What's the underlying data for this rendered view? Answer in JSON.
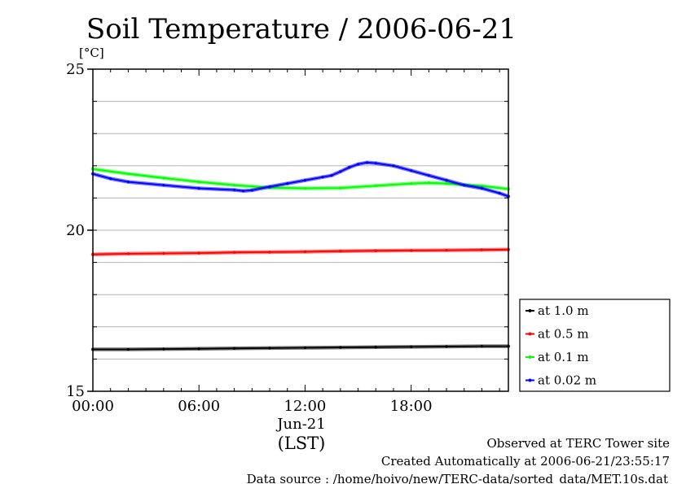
{
  "chart_data": {
    "type": "line",
    "title": "Soil Temperature / 2006-06-21",
    "unit_label": "[°C]",
    "ylim": [
      15,
      25
    ],
    "y_ticks": [
      15,
      20,
      25
    ],
    "y_tick_labels": [
      "15",
      "20",
      "25"
    ],
    "y_minor_step": 1,
    "xlim_hours": [
      0,
      23.5
    ],
    "x_ticks": [
      0,
      6,
      12,
      18
    ],
    "x_tick_labels": [
      "00:00",
      "06:00",
      "12:00",
      "18:00"
    ],
    "date_label": "Jun-21",
    "xlabel": "(LST)",
    "grid": "horizontal",
    "legend_position": "right",
    "series": [
      {
        "name": "at 1.0 m",
        "color": "#000000",
        "x": [
          0,
          2,
          4,
          6,
          8,
          10,
          12,
          14,
          16,
          18,
          20,
          22,
          23.5
        ],
        "y": [
          16.3,
          16.3,
          16.31,
          16.32,
          16.33,
          16.34,
          16.35,
          16.36,
          16.37,
          16.38,
          16.39,
          16.4,
          16.4
        ]
      },
      {
        "name": "at 0.5 m",
        "color": "#ff0000",
        "x": [
          0,
          2,
          4,
          6,
          8,
          10,
          12,
          14,
          16,
          18,
          20,
          22,
          23.5
        ],
        "y": [
          19.25,
          19.27,
          19.28,
          19.29,
          19.31,
          19.32,
          19.33,
          19.35,
          19.36,
          19.37,
          19.38,
          19.39,
          19.4
        ]
      },
      {
        "name": "at 0.1 m",
        "color": "#00ff00",
        "x": [
          0,
          2,
          4,
          6,
          8,
          10,
          12,
          14,
          16,
          18,
          19,
          20,
          22,
          23.5
        ],
        "y": [
          21.9,
          21.75,
          21.62,
          21.5,
          21.4,
          21.32,
          21.3,
          21.31,
          21.38,
          21.45,
          21.47,
          21.45,
          21.37,
          21.28
        ]
      },
      {
        "name": "at 0.02 m",
        "color": "#0000ff",
        "x": [
          0,
          1,
          2,
          4,
          6,
          8,
          8.5,
          9,
          10,
          11,
          12,
          13,
          13.5,
          14,
          14.5,
          15,
          15.5,
          16,
          17,
          18,
          19,
          20,
          21,
          22,
          23,
          23.5
        ],
        "y": [
          21.75,
          21.6,
          21.5,
          21.4,
          21.3,
          21.25,
          21.22,
          21.24,
          21.35,
          21.45,
          21.55,
          21.65,
          21.7,
          21.82,
          21.95,
          22.05,
          22.1,
          22.08,
          22.0,
          21.85,
          21.7,
          21.55,
          21.4,
          21.3,
          21.15,
          21.05
        ]
      }
    ]
  },
  "footer": {
    "observed": "Observed at TERC Tower site",
    "created": "Created Automatically at 2006-06-21/23:55:17",
    "source": "Data source : /home/hoivo/new/TERC-data/sorted_data/MET.10s.dat"
  }
}
